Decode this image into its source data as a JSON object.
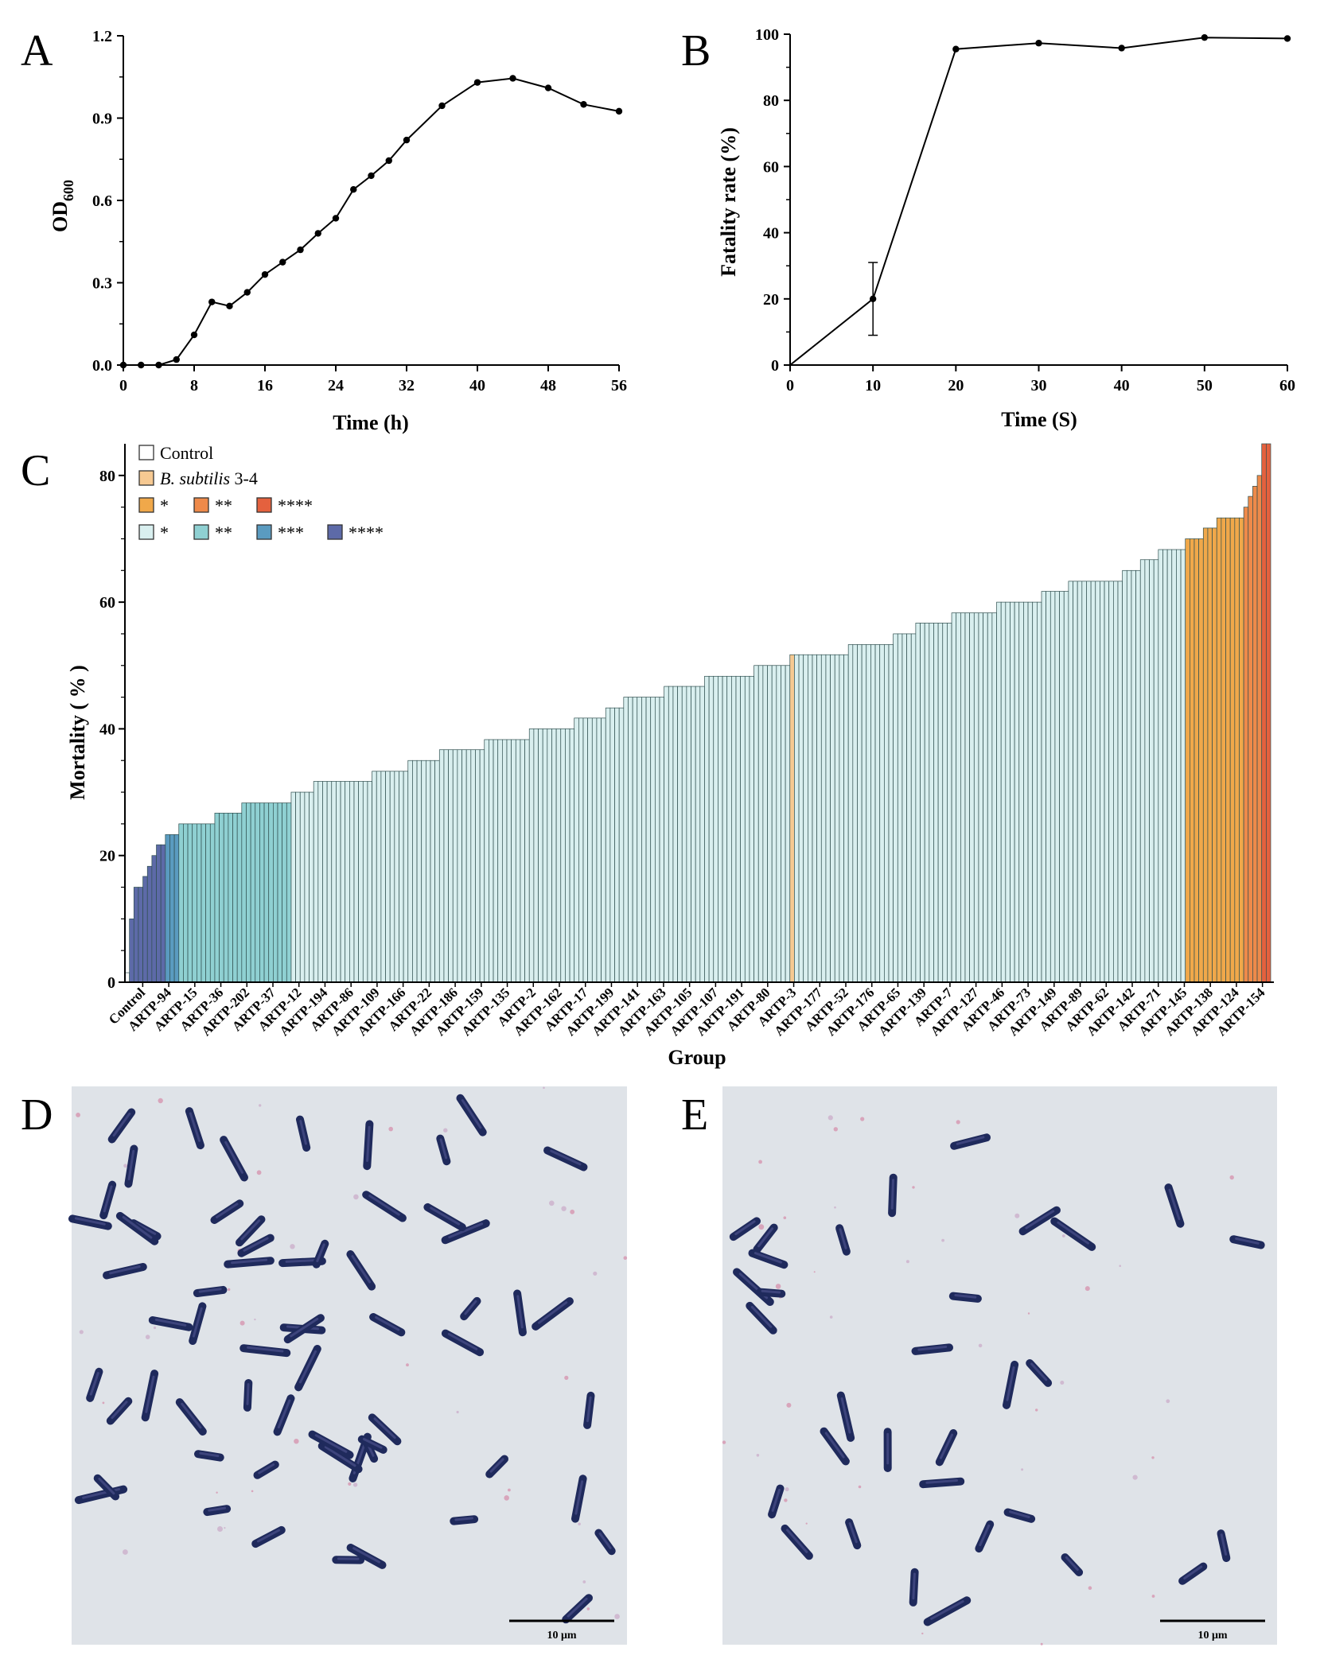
{
  "figure": {
    "panels": {
      "A": "A",
      "B": "B",
      "C": "C",
      "D": "D",
      "E": "E"
    }
  },
  "micrographs": [
    {
      "panel": "D",
      "scale_bar_label": "10 μm"
    },
    {
      "panel": "E",
      "scale_bar_label": "10 μm"
    }
  ],
  "colors": {
    "control": "#ffffff",
    "b_subtilis": "#f6c992",
    "up1": "#f0a84a",
    "up2": "#ee8a4a",
    "up4": "#e4613e",
    "down1": "#d9efef",
    "down2": "#8fd0d2",
    "down3": "#5a9bc0",
    "down4": "#5d6aa8",
    "bar_stroke": "#2f4f4f"
  },
  "chart_data": [
    {
      "panel": "A",
      "type": "line",
      "xlabel": "Time (h)",
      "ylabel": "OD600",
      "ylabel_main": "OD",
      "ylabel_sub": "600",
      "xlim": [
        0,
        56
      ],
      "ylim": [
        0,
        1.2
      ],
      "xticks": [
        "0",
        "8",
        "16",
        "24",
        "32",
        "40",
        "48",
        "56"
      ],
      "yticks": [
        "0.0",
        "0.3",
        "0.6",
        "0.9",
        "1.2"
      ],
      "x": [
        0,
        2,
        4,
        6,
        8,
        10,
        12,
        14,
        16,
        18,
        20,
        22,
        24,
        26,
        28,
        30,
        32,
        36,
        40,
        44,
        48,
        52,
        56
      ],
      "y": [
        0.0,
        0.0,
        0.0,
        0.02,
        0.11,
        0.23,
        0.215,
        0.265,
        0.33,
        0.375,
        0.42,
        0.48,
        0.535,
        0.64,
        0.69,
        0.745,
        0.82,
        0.945,
        1.03,
        1.045,
        1.01,
        0.95,
        0.925
      ]
    },
    {
      "panel": "B",
      "type": "line",
      "xlabel": "Time (S)",
      "ylabel": "Fatality rate (%)",
      "xlim": [
        0,
        60
      ],
      "ylim": [
        0,
        100
      ],
      "xticks": [
        "0",
        "10",
        "20",
        "30",
        "40",
        "50",
        "60"
      ],
      "yticks": [
        "0",
        "20",
        "40",
        "60",
        "80",
        "100"
      ],
      "x": [
        0,
        10,
        20,
        30,
        40,
        50,
        60
      ],
      "y": [
        0,
        20,
        95.5,
        97.3,
        95.8,
        99,
        98.7
      ],
      "error": [
        0,
        11,
        0,
        0,
        0,
        0,
        0
      ]
    },
    {
      "panel": "C",
      "type": "bar",
      "xlabel": "Group",
      "ylabel": "Mortality ( % )",
      "ylim": [
        0,
        85
      ],
      "yticks": [
        "0",
        "20",
        "40",
        "60",
        "80"
      ],
      "tick_labels": [
        "Control",
        "ARTP-94",
        "ARTP-15",
        "ARTP-36",
        "ARTP-202",
        "ARTP-37",
        "ARTP-12",
        "ARTP-194",
        "ARTP-86",
        "ARTP-109",
        "ARTP-166",
        "ARTP-22",
        "ARTP-186",
        "ARTP-159",
        "ARTP-135",
        "ARTP-2",
        "ARTP-162",
        "ARTP-17",
        "ARTP-199",
        "ARTP-141",
        "ARTP-163",
        "ARTP-105",
        "ARTP-107",
        "ARTP-191",
        "ARTP-80",
        "ARTP-3",
        "ARTP-177",
        "ARTP-52",
        "ARTP-176",
        "ARTP-65",
        "ARTP-139",
        "ARTP-7",
        "ARTP-127",
        "ARTP-46",
        "ARTP-73",
        "ARTP-149",
        "ARTP-89",
        "ARTP-62",
        "ARTP-142",
        "ARTP-71",
        "ARTP-145",
        "ARTP-138",
        "ARTP-124",
        "ARTP-154"
      ],
      "legend": [
        {
          "label": "Control",
          "italic": "",
          "color_key": "control"
        },
        {
          "label": " 3-4",
          "italic": "B. subtilis",
          "color_key": "b_subtilis"
        },
        {
          "label": "*",
          "italic": "",
          "color_key": "up1"
        },
        {
          "label": "**",
          "italic": "",
          "color_key": "up2"
        },
        {
          "label": "****",
          "italic": "",
          "color_key": "up4"
        },
        {
          "label": "*",
          "italic": "",
          "color_key": "down1"
        },
        {
          "label": "**",
          "italic": "",
          "color_key": "down2"
        },
        {
          "label": "***",
          "italic": "",
          "color_key": "down3"
        },
        {
          "label": "****",
          "italic": "",
          "color_key": "down4"
        }
      ],
      "bar_groups": [
        {
          "key": "control",
          "values": [
            1.5
          ]
        },
        {
          "key": "down4",
          "values": [
            10,
            15,
            15,
            16.7,
            18.3,
            20,
            21.7,
            21.7
          ]
        },
        {
          "key": "down3",
          "values": [
            23.3,
            23.3,
            23.3
          ]
        },
        {
          "key": "down2",
          "values": [
            25,
            25,
            25,
            25,
            25,
            25,
            25,
            25,
            26.7,
            26.7,
            26.7,
            26.7,
            26.7,
            26.7,
            28.3,
            28.3,
            28.3,
            28.3,
            28.3,
            28.3,
            28.3,
            28.3,
            28.3,
            28.3,
            28.3
          ]
        },
        {
          "key": "down1",
          "values": [
            30,
            30,
            30,
            30,
            30,
            31.7,
            31.7,
            31.7,
            31.7,
            31.7,
            31.7,
            31.7,
            31.7,
            31.7,
            31.7,
            31.7,
            31.7,
            31.7,
            33.3,
            33.3,
            33.3,
            33.3,
            33.3,
            33.3,
            33.3,
            33.3
          ]
        },
        {
          "key": "down1",
          "values": [
            35,
            35,
            35,
            35,
            35,
            35,
            35,
            36.7,
            36.7,
            36.7,
            36.7,
            36.7,
            36.7,
            36.7,
            36.7,
            36.7,
            36.7,
            38.3,
            38.3,
            38.3,
            38.3,
            38.3,
            38.3,
            38.3,
            38.3,
            38.3,
            38.3,
            40,
            40,
            40,
            40,
            40,
            40,
            40,
            40,
            40,
            40,
            41.7,
            41.7,
            41.7,
            41.7,
            41.7,
            41.7,
            41.7,
            43.3,
            43.3,
            43.3,
            43.3,
            45,
            45,
            45,
            45,
            45,
            45,
            45,
            45,
            45,
            46.7,
            46.7,
            46.7,
            46.7,
            46.7,
            46.7,
            46.7,
            46.7,
            46.7,
            48.3,
            48.3,
            48.3,
            48.3,
            48.3,
            48.3,
            48.3,
            48.3,
            48.3,
            48.3,
            48.3,
            50,
            50,
            50,
            50,
            50,
            50,
            50,
            50
          ]
        },
        {
          "key": "b_subtilis",
          "values": [
            51.7
          ]
        },
        {
          "key": "down1",
          "values": [
            51.7,
            51.7,
            51.7,
            51.7,
            51.7,
            51.7,
            51.7,
            51.7,
            51.7,
            51.7,
            51.7,
            51.7,
            53.3,
            53.3,
            53.3,
            53.3,
            53.3,
            53.3,
            53.3,
            53.3,
            53.3,
            53.3,
            55,
            55,
            55,
            55,
            55,
            56.7,
            56.7,
            56.7,
            56.7,
            56.7,
            56.7,
            56.7,
            56.7,
            58.3,
            58.3,
            58.3,
            58.3,
            58.3,
            58.3,
            58.3,
            58.3,
            58.3,
            58.3,
            60,
            60,
            60,
            60,
            60,
            60,
            60,
            60,
            60,
            60,
            61.7,
            61.7,
            61.7,
            61.7,
            61.7,
            61.7,
            63.3,
            63.3,
            63.3,
            63.3,
            63.3,
            63.3,
            63.3,
            63.3,
            63.3,
            63.3,
            63.3,
            63.3,
            65,
            65,
            65,
            65,
            66.7,
            66.7,
            66.7,
            66.7,
            68.3,
            68.3,
            68.3,
            68.3,
            68.3,
            68.3
          ]
        },
        {
          "key": "up1",
          "values": [
            70,
            70,
            70,
            70,
            71.7,
            71.7,
            71.7,
            73.3,
            73.3,
            73.3,
            73.3,
            73.3,
            73.3
          ]
        },
        {
          "key": "up2",
          "values": [
            75,
            76.7,
            78.3,
            80
          ]
        },
        {
          "key": "up4",
          "values": [
            85,
            85
          ]
        }
      ]
    }
  ]
}
